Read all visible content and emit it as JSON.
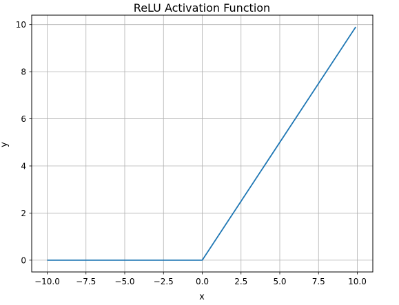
{
  "chart_data": {
    "type": "line",
    "title": "ReLU Activation Function",
    "xlabel": "x",
    "ylabel": "y",
    "xlim": [
      -11,
      11
    ],
    "ylim": [
      -0.5,
      10.4
    ],
    "xticks": [
      -10.0,
      -7.5,
      -5.0,
      -2.5,
      0.0,
      2.5,
      5.0,
      7.5,
      10.0
    ],
    "xtick_labels": [
      "−10.0",
      "−7.5",
      "−5.0",
      "−2.5",
      "0.0",
      "2.5",
      "5.0",
      "7.5",
      "10.0"
    ],
    "yticks": [
      0,
      2,
      4,
      6,
      8,
      10
    ],
    "ytick_labels": [
      "0",
      "2",
      "4",
      "6",
      "8",
      "10"
    ],
    "grid": true,
    "series": [
      {
        "color": "#1f77b4",
        "x": [
          -10.0,
          0.0,
          9.9
        ],
        "y": [
          0.0,
          0.0,
          9.9
        ]
      }
    ]
  }
}
